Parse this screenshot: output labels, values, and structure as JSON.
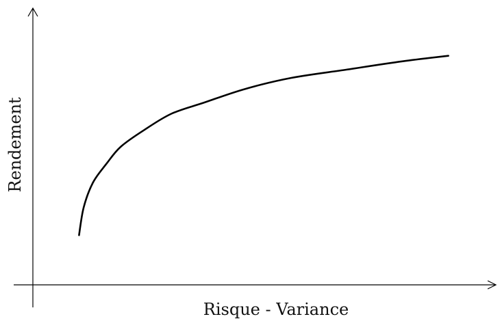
{
  "chart_data": {
    "type": "line",
    "title": "",
    "xlabel": "Risque - Variance",
    "ylabel": "Rendement",
    "grid": false,
    "ticks": false,
    "xlim": [
      0,
      1
    ],
    "ylim": [
      0,
      1
    ],
    "series": [
      {
        "values": [
          {
            "x": 0.1,
            "y": 0.18
          },
          {
            "x": 0.11,
            "y": 0.28
          },
          {
            "x": 0.13,
            "y": 0.37
          },
          {
            "x": 0.16,
            "y": 0.44
          },
          {
            "x": 0.19,
            "y": 0.5
          },
          {
            "x": 0.24,
            "y": 0.56
          },
          {
            "x": 0.3,
            "y": 0.62
          },
          {
            "x": 0.37,
            "y": 0.66
          },
          {
            "x": 0.46,
            "y": 0.71
          },
          {
            "x": 0.56,
            "y": 0.75
          },
          {
            "x": 0.68,
            "y": 0.78
          },
          {
            "x": 0.8,
            "y": 0.81
          },
          {
            "x": 0.9,
            "y": 0.83
          }
        ]
      }
    ],
    "colors": {
      "axis": "#000000",
      "curve": "#000000"
    }
  }
}
